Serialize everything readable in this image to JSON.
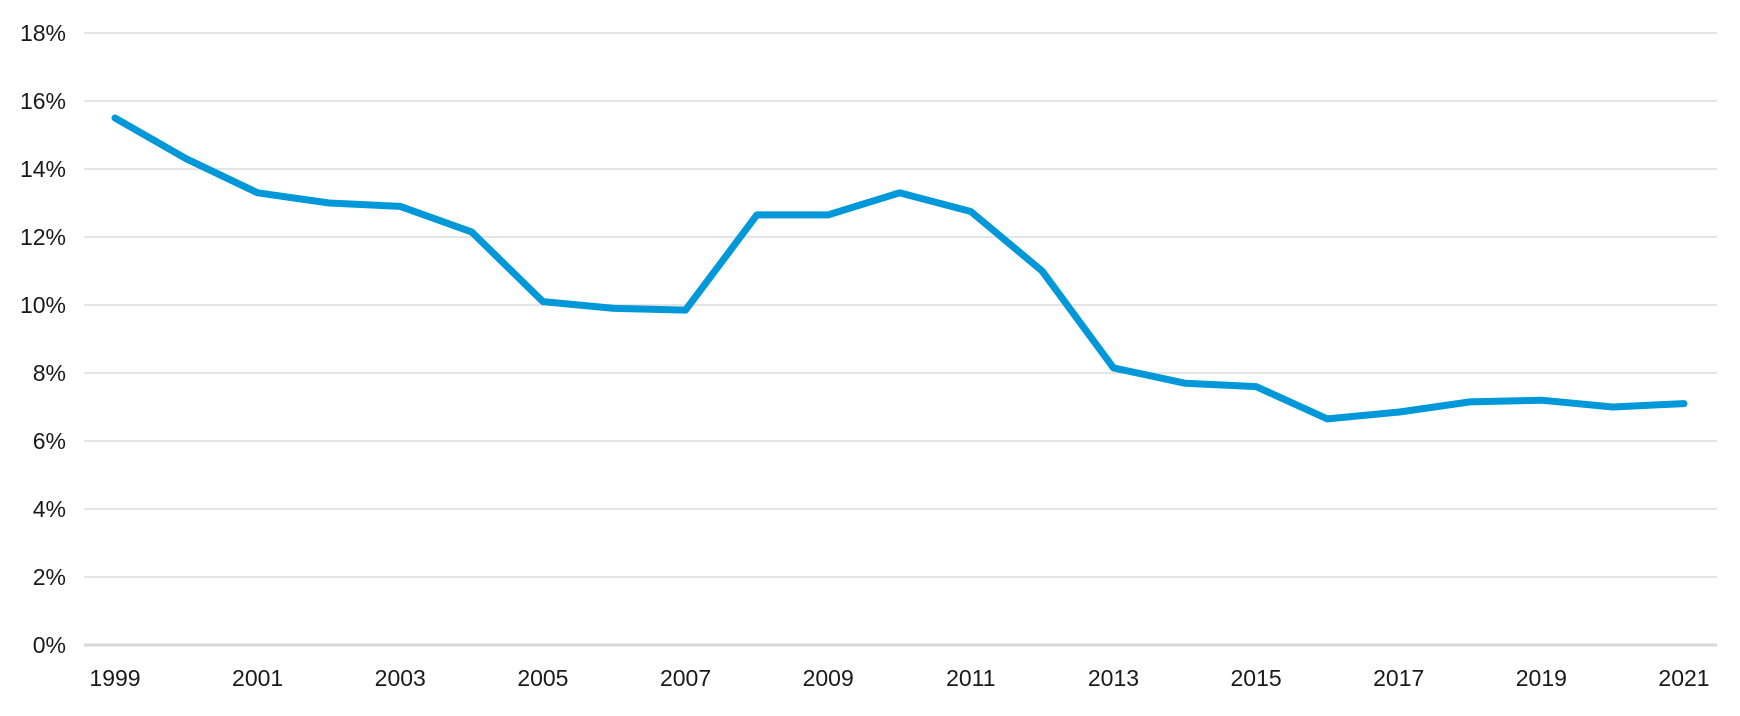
{
  "chart_data": {
    "type": "line",
    "title": "",
    "xlabel": "",
    "ylabel": "",
    "x": [
      1999,
      2000,
      2001,
      2002,
      2003,
      2004,
      2005,
      2006,
      2007,
      2008,
      2009,
      2010,
      2011,
      2012,
      2013,
      2014,
      2015,
      2016,
      2017,
      2018,
      2019,
      2020,
      2021
    ],
    "series": [
      {
        "values": [
          15.5,
          14.3,
          13.3,
          13.0,
          12.9,
          12.15,
          10.1,
          9.9,
          9.85,
          12.65,
          12.65,
          13.3,
          12.75,
          11.0,
          8.15,
          7.7,
          7.6,
          6.65,
          6.85,
          7.15,
          7.2,
          7.0,
          7.1
        ],
        "color": "#0098d8"
      }
    ],
    "ylim": [
      0,
      18
    ],
    "xlim": [
      1999,
      2021
    ],
    "y_ticks": [
      "0%",
      "2%",
      "4%",
      "6%",
      "8%",
      "10%",
      "12%",
      "14%",
      "16%",
      "18%"
    ],
    "x_ticks": [
      "1999",
      "2001",
      "2003",
      "2005",
      "2007",
      "2009",
      "2011",
      "2013",
      "2015",
      "2017",
      "2019",
      "2021"
    ],
    "grid": "horizontal",
    "legend": "none"
  }
}
